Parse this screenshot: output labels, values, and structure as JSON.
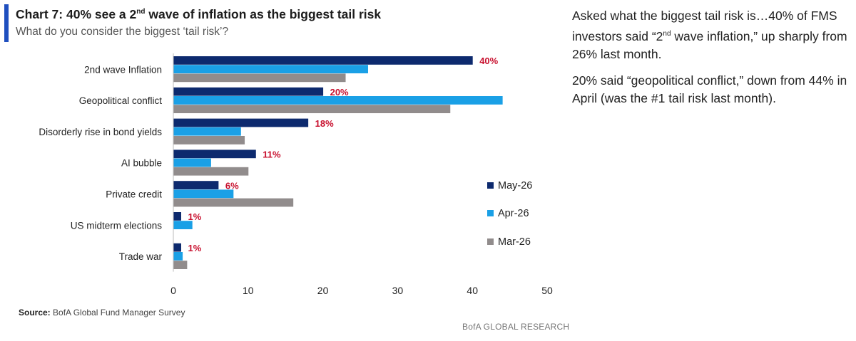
{
  "header": {
    "title_prefix": "Chart 7: 40% see a 2",
    "title_sup": "nd",
    "title_suffix": " wave of inflation as the biggest tail risk",
    "subtitle": "What do you consider the biggest ‘tail risk’?"
  },
  "chart_data": {
    "type": "bar",
    "orientation": "horizontal",
    "categories": [
      "2nd wave Inflation",
      "Geopolitical conflict",
      "Disorderly rise in bond yields",
      "AI bubble",
      "Private credit",
      "US midterm elections",
      "Trade war"
    ],
    "series": [
      {
        "name": "May-26",
        "color": "#0d2a6e",
        "values": [
          40,
          20,
          18,
          11,
          6,
          1,
          1
        ]
      },
      {
        "name": "Apr-26",
        "color": "#1aa0e6",
        "values": [
          26,
          44,
          9,
          5,
          8,
          2.5,
          1.2
        ]
      },
      {
        "name": "Mar-26",
        "color": "#918c8c",
        "values": [
          23,
          37,
          9.5,
          10,
          16,
          0,
          1.8
        ]
      }
    ],
    "data_labels": [
      "40%",
      "20%",
      "18%",
      "11%",
      "6%",
      "1%",
      "1%"
    ],
    "label_color": "#c8102e",
    "x_ticks": [
      "0",
      "10",
      "20",
      "30",
      "40",
      "50"
    ],
    "xlim": [
      0,
      50
    ],
    "grid": false,
    "legend_position": "right"
  },
  "footer": {
    "source_label": "Source:",
    "source_text": " BofA Global Fund Manager Survey",
    "brand": "BofA GLOBAL RESEARCH"
  },
  "commentary": {
    "p1_prefix": "Asked what the biggest tail risk is…40% of FMS investors said “2",
    "p1_sup": "nd",
    "p1_suffix": " wave inflation,” up sharply from 26% last month.",
    "p2": "20% said “geopolitical conflict,” down from 44% in April (was the #1 tail risk last month)."
  }
}
